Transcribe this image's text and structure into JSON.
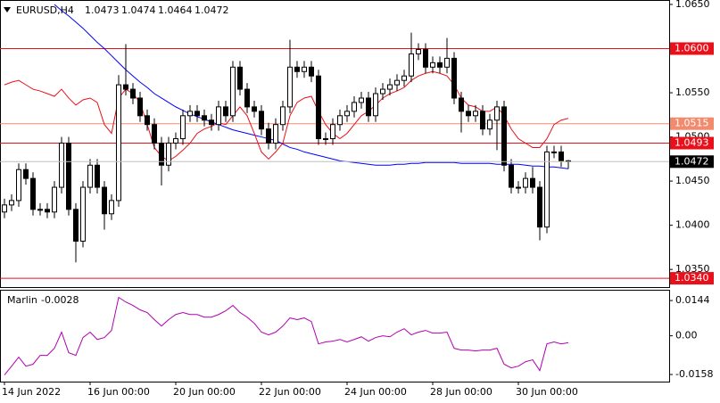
{
  "chart_data": [
    {
      "type": "candlestick",
      "symbol": "EURUSD,H4",
      "categories": [
        "14 Jun 2022",
        null,
        null,
        null,
        null,
        null,
        null,
        null,
        null,
        null,
        null,
        null,
        "16 Jun 00:00",
        null,
        null,
        null,
        null,
        null,
        null,
        null,
        null,
        null,
        null,
        null,
        "20 Jun 00:00",
        null,
        null,
        null,
        null,
        null,
        null,
        null,
        null,
        null,
        null,
        null,
        "22 Jun 00:00",
        null,
        null,
        null,
        null,
        null,
        null,
        null,
        null,
        null,
        null,
        null,
        "24 Jun 00:00",
        null,
        null,
        null,
        null,
        null,
        null,
        null,
        null,
        null,
        null,
        null,
        "28 Jun 00:00",
        null,
        null,
        null,
        null,
        null,
        null,
        null,
        null,
        null,
        null,
        null,
        "30 Jun 00:00",
        null,
        null,
        null,
        null,
        null,
        null,
        null
      ],
      "open": [
        1.0415,
        1.0423,
        1.0428,
        1.0463,
        1.0453,
        1.0418,
        1.0418,
        1.0415,
        1.0443,
        1.0493,
        1.0418,
        1.0382,
        1.0443,
        1.0468,
        1.0443,
        1.0413,
        1.0428,
        1.0559,
        1.0554,
        1.0544,
        1.0524,
        1.0514,
        1.0493,
        1.0468,
        1.0493,
        1.0498,
        1.0524,
        1.0529,
        1.0524,
        1.0519,
        1.0514,
        1.0534,
        1.0524,
        1.0579,
        1.0554,
        1.0534,
        1.0529,
        1.0509,
        1.0493,
        1.0514,
        1.0534,
        1.0579,
        1.0574,
        1.0579,
        1.0569,
        1.0498,
        1.0498,
        1.0514,
        1.0524,
        1.0529,
        1.0539,
        1.0544,
        1.0524,
        1.0549,
        1.0554,
        1.0559,
        1.0564,
        1.0569,
        1.0594,
        1.0599,
        1.0579,
        1.0584,
        1.0579,
        1.0589,
        1.0544,
        1.0529,
        1.0524,
        1.0529,
        1.0509,
        1.0519,
        1.0534,
        1.0468,
        1.0443,
        1.0443,
        1.0453,
        1.0443,
        1.0398,
        1.0483,
        1.0483,
        1.0473
      ],
      "high": [
        1.043,
        1.0435,
        1.047,
        1.047,
        1.046,
        1.0425,
        1.0425,
        1.045,
        1.05,
        1.05,
        1.0425,
        1.045,
        1.0475,
        1.0475,
        1.045,
        1.0435,
        1.057,
        1.0605,
        1.0561,
        1.0551,
        1.0531,
        1.0521,
        1.05,
        1.05,
        1.0505,
        1.0531,
        1.0536,
        1.0536,
        1.0531,
        1.0526,
        1.0541,
        1.0541,
        1.0586,
        1.0586,
        1.0561,
        1.0541,
        1.0536,
        1.0516,
        1.0521,
        1.0541,
        1.061,
        1.0586,
        1.0586,
        1.0586,
        1.0576,
        1.0505,
        1.0521,
        1.0531,
        1.0536,
        1.0546,
        1.0551,
        1.0551,
        1.0556,
        1.0561,
        1.0566,
        1.0571,
        1.0576,
        1.0618,
        1.0606,
        1.0606,
        1.0591,
        1.0591,
        1.0612,
        1.0596,
        1.0551,
        1.0536,
        1.0536,
        1.0536,
        1.0526,
        1.0541,
        1.0541,
        1.0475,
        1.045,
        1.046,
        1.0466,
        1.045,
        1.049,
        1.049,
        1.049,
        1.0474
      ],
      "low": [
        1.0408,
        1.0416,
        1.0421,
        1.0446,
        1.0411,
        1.0411,
        1.0408,
        1.0408,
        1.0436,
        1.0411,
        1.0358,
        1.0375,
        1.0436,
        1.0436,
        1.0395,
        1.0406,
        1.0421,
        1.0547,
        1.0537,
        1.0517,
        1.0507,
        1.0486,
        1.0445,
        1.0461,
        1.0486,
        1.0491,
        1.0517,
        1.0517,
        1.0512,
        1.0507,
        1.0507,
        1.0517,
        1.0517,
        1.0547,
        1.0527,
        1.0522,
        1.0502,
        1.0486,
        1.0486,
        1.0507,
        1.0527,
        1.0567,
        1.0567,
        1.0562,
        1.0491,
        1.0491,
        1.0491,
        1.0507,
        1.0517,
        1.0522,
        1.0532,
        1.0517,
        1.0517,
        1.0542,
        1.0547,
        1.0552,
        1.0557,
        1.0562,
        1.0587,
        1.0572,
        1.0572,
        1.0572,
        1.0572,
        1.0537,
        1.0505,
        1.0517,
        1.0517,
        1.0502,
        1.0502,
        1.0485,
        1.0461,
        1.0436,
        1.0436,
        1.0436,
        1.0436,
        1.0383,
        1.0391,
        1.0476,
        1.0466,
        1.0464
      ],
      "close": [
        1.0423,
        1.0428,
        1.0463,
        1.0453,
        1.0418,
        1.0418,
        1.0415,
        1.0443,
        1.0493,
        1.0418,
        1.0382,
        1.0443,
        1.0468,
        1.0443,
        1.0413,
        1.0428,
        1.0559,
        1.0554,
        1.0544,
        1.0524,
        1.0514,
        1.0493,
        1.0468,
        1.0493,
        1.0498,
        1.0524,
        1.0529,
        1.0524,
        1.0519,
        1.0514,
        1.0534,
        1.0524,
        1.0579,
        1.0554,
        1.0534,
        1.0529,
        1.0509,
        1.0493,
        1.0514,
        1.0534,
        1.0579,
        1.0574,
        1.0579,
        1.0569,
        1.0498,
        1.0498,
        1.0514,
        1.0524,
        1.0529,
        1.0539,
        1.0544,
        1.0524,
        1.0549,
        1.0554,
        1.0559,
        1.0564,
        1.0569,
        1.0594,
        1.0599,
        1.0579,
        1.0584,
        1.0579,
        1.0589,
        1.0544,
        1.0529,
        1.0524,
        1.0529,
        1.0509,
        1.0519,
        1.0534,
        1.0468,
        1.0443,
        1.0443,
        1.0453,
        1.0443,
        1.0398,
        1.0483,
        1.0483,
        1.0473,
        1.0472
      ],
      "series": [
        {
          "color": "#0000ff",
          "values": [
            null,
            null,
            null,
            null,
            null,
            null,
            null,
            1.065,
            1.0643,
            1.0637,
            1.063,
            1.0623,
            1.0615,
            1.0607,
            1.06,
            1.0592,
            1.0584,
            1.0576,
            1.0569,
            1.0562,
            1.0556,
            1.0549,
            1.0544,
            1.0539,
            1.0534,
            1.053,
            1.0526,
            1.0523,
            1.052,
            1.0517,
            1.0514,
            1.0511,
            1.0508,
            1.0506,
            1.0504,
            1.0502,
            1.05,
            1.0498,
            1.0496,
            1.0492,
            1.0488,
            1.0486,
            1.0483,
            1.0481,
            1.0479,
            1.0477,
            1.0475,
            1.0473,
            1.0472,
            1.0471,
            1.047,
            1.0469,
            1.0468,
            1.0468,
            1.0468,
            1.0469,
            1.0469,
            1.047,
            1.047,
            1.0471,
            1.0471,
            1.0471,
            1.0471,
            1.0471,
            1.047,
            1.047,
            1.047,
            1.047,
            1.047,
            1.0469,
            1.0469,
            1.0469,
            1.0469,
            1.0468,
            1.0467,
            1.0467,
            1.0466,
            1.0466,
            1.0465,
            1.0464
          ]
        },
        {
          "color": "#e8101a",
          "values": [
            1.0559,
            1.0562,
            1.0564,
            1.0559,
            1.0554,
            1.0552,
            1.0549,
            1.0546,
            1.0554,
            1.0544,
            1.0536,
            1.0542,
            1.0544,
            1.0539,
            1.0514,
            1.0504,
            1.0544,
            1.0554,
            1.0549,
            1.0539,
            1.0514,
            1.0488,
            1.0478,
            1.0473,
            1.0478,
            1.0485,
            1.0493,
            1.0504,
            1.0509,
            1.0512,
            1.0516,
            1.0514,
            1.0524,
            1.0534,
            1.0524,
            1.0504,
            1.0483,
            1.0475,
            1.0483,
            1.0493,
            1.0524,
            1.0539,
            1.0544,
            1.0546,
            1.0529,
            1.0514,
            1.0504,
            1.0498,
            1.0504,
            1.0514,
            1.0524,
            1.0529,
            1.0536,
            1.0544,
            1.0549,
            1.0552,
            1.0556,
            1.0564,
            1.0569,
            1.0572,
            1.0574,
            1.0572,
            1.0569,
            1.0559,
            1.0544,
            1.0536,
            1.0534,
            1.0529,
            1.0529,
            1.0534,
            1.0524,
            1.0509,
            1.0498,
            1.0493,
            1.0488,
            1.0488,
            1.0498,
            1.0514,
            1.0519,
            1.0521
          ]
        }
      ],
      "levels": [
        {
          "value": 1.06,
          "label": "1.0600",
          "color": "#e8101a"
        },
        {
          "value": 1.0515,
          "label": "1.0515",
          "color": "#f28b6e"
        },
        {
          "value": 1.0493,
          "label": "1.0493",
          "color": "#e8101a"
        },
        {
          "value": 1.034,
          "label": "1.0340",
          "color": "#e8101a"
        }
      ],
      "ylim": [
        1.033,
        1.0655
      ],
      "yticks": [
        {
          "value": 1.065,
          "label": "1.0650"
        },
        {
          "value": 1.06,
          "label": "1.0600"
        },
        {
          "value": 1.055,
          "label": "1.0550"
        },
        {
          "value": 1.05,
          "label": "1.0500"
        },
        {
          "value": 1.045,
          "label": "1.0450"
        },
        {
          "value": 1.04,
          "label": "1.0400"
        },
        {
          "value": 1.035,
          "label": "1.0350"
        }
      ]
    },
    {
      "type": "line",
      "name": "Marlin",
      "color": "#b000b0",
      "values": [
        -0.016,
        -0.0124,
        -0.0087,
        -0.0124,
        -0.0116,
        -0.008,
        -0.008,
        -0.0051,
        0.0015,
        -0.0069,
        -0.008,
        -0.0007,
        0.0015,
        -0.0015,
        -0.0007,
        0.0022,
        0.0157,
        0.0138,
        0.0124,
        0.0106,
        0.0095,
        0.0066,
        0.004,
        0.0066,
        0.0087,
        0.0095,
        0.0087,
        0.0087,
        0.0076,
        0.0076,
        0.0087,
        0.0102,
        0.0124,
        0.0095,
        0.0076,
        0.0051,
        0.0015,
        0.0004,
        0.0015,
        0.004,
        0.0073,
        0.0066,
        0.0073,
        0.0058,
        -0.0033,
        -0.0025,
        -0.0022,
        -0.0015,
        -0.0025,
        -0.0015,
        -0.0004,
        -0.0022,
        -0.0007,
        0.0,
        -0.0004,
        0.0015,
        0.0029,
        0.0004,
        0.0015,
        0.0022,
        0.0011,
        0.0011,
        0.0015,
        -0.0051,
        -0.0058,
        -0.0058,
        -0.0062,
        -0.0058,
        -0.0058,
        -0.0051,
        -0.0116,
        -0.0131,
        -0.0124,
        -0.0106,
        -0.0098,
        -0.0142,
        -0.0033,
        -0.0025,
        -0.0033,
        -0.0028
      ],
      "ylim": [
        -0.0187,
        0.0188
      ],
      "yticks": [
        0.0144,
        {
          "value": 0,
          "label": "0.00"
        },
        -0.0158
      ]
    }
  ]
}
